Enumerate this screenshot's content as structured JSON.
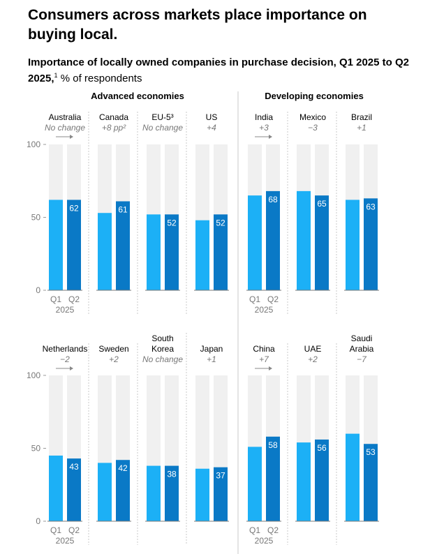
{
  "title": "Consumers across markets place importance on buying local.",
  "subtitle_bold": "Importance of locally owned companies in purchase decision, Q1 2025 to Q2 2025,",
  "subtitle_sup": "1",
  "subtitle_rest": " % of respondents",
  "colors": {
    "q1": "#1CB0F6",
    "q2": "#0A79C6",
    "track": "#F0F0F0"
  },
  "chart_data": {
    "type": "bar",
    "groups": [
      "Advanced economies",
      "Developing economies"
    ],
    "series": [
      {
        "name": "Q1",
        "key": "q1"
      },
      {
        "name": "Q2",
        "key": "q2"
      }
    ],
    "x_period": "2025",
    "ylim": [
      0,
      100
    ],
    "yticks": [
      "0",
      "50",
      "100"
    ],
    "value_labels_for": "Q2",
    "rows": [
      [
        {
          "country": [
            "Australia"
          ],
          "change": "No change",
          "group": "Advanced economies",
          "q1": 62,
          "q2": 62,
          "axis_label": true
        },
        {
          "country": [
            "Canada"
          ],
          "change": "+8 pp²",
          "group": "Advanced economies",
          "q1": 53,
          "q2": 61
        },
        {
          "country": [
            "EU-5³"
          ],
          "change": "No change",
          "group": "Advanced economies",
          "q1": 52,
          "q2": 52
        },
        {
          "country": [
            "US"
          ],
          "change": "+4",
          "group": "Advanced economies",
          "q1": 48,
          "q2": 52
        },
        {
          "country": [
            "India"
          ],
          "change": "+3",
          "group": "Developing economies",
          "q1": 65,
          "q2": 68,
          "axis_label": true
        },
        {
          "country": [
            "Mexico"
          ],
          "change": "−3",
          "group": "Developing economies",
          "q1": 68,
          "q2": 65
        },
        {
          "country": [
            "Brazil"
          ],
          "change": "+1",
          "group": "Developing economies",
          "q1": 62,
          "q2": 63
        }
      ],
      [
        {
          "country": [
            "Netherlands"
          ],
          "change": "−2",
          "group": "Advanced economies",
          "q1": 45,
          "q2": 43,
          "axis_label": true
        },
        {
          "country": [
            "Sweden"
          ],
          "change": "+2",
          "group": "Advanced economies",
          "q1": 40,
          "q2": 42
        },
        {
          "country": [
            "South",
            "Korea"
          ],
          "change": "No change",
          "group": "Advanced economies",
          "q1": 38,
          "q2": 38
        },
        {
          "country": [
            "Japan"
          ],
          "change": "+1",
          "group": "Advanced economies",
          "q1": 36,
          "q2": 37
        },
        {
          "country": [
            "China"
          ],
          "change": "+7",
          "group": "Developing economies",
          "q1": 51,
          "q2": 58,
          "axis_label": true
        },
        {
          "country": [
            "UAE"
          ],
          "change": "+2",
          "group": "Developing economies",
          "q1": 54,
          "q2": 56
        },
        {
          "country": [
            "Saudi",
            "Arabia"
          ],
          "change": "−7",
          "group": "Developing economies",
          "q1": 60,
          "q2": 53
        }
      ]
    ]
  }
}
